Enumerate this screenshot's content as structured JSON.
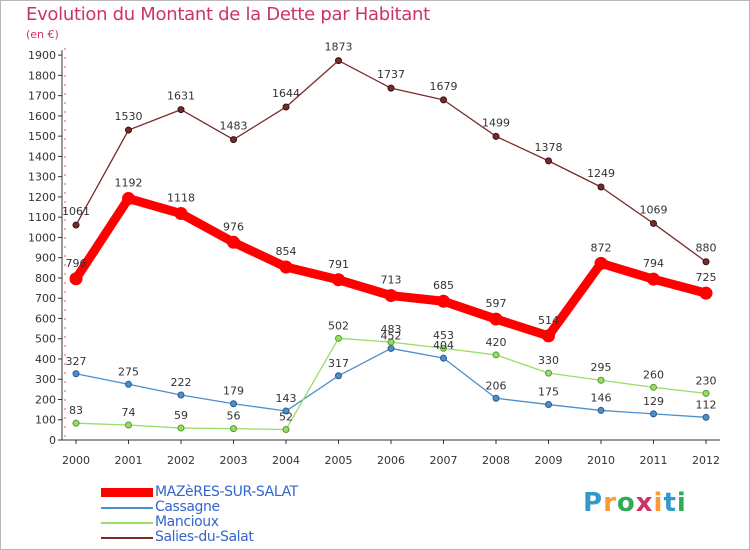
{
  "header": {
    "title": "Evolution du Montant de la Dette par Habitant",
    "subtitle": "(en €)"
  },
  "brand": {
    "text": "Proxiti",
    "colors": [
      "#3399cc",
      "#ff9933",
      "#33aa55",
      "#cc3366",
      "#ff9933",
      "#3399cc",
      "#33aa55"
    ]
  },
  "chart_data": {
    "type": "line",
    "title": "Evolution du Montant de la Dette par Habitant",
    "ylabel": "(en €)",
    "xlabel": "",
    "x": [
      2000,
      2001,
      2002,
      2003,
      2004,
      2005,
      2006,
      2007,
      2008,
      2009,
      2010,
      2011,
      2012
    ],
    "ylim": [
      0,
      1950
    ],
    "yticks": [
      0,
      100,
      200,
      300,
      400,
      500,
      600,
      700,
      800,
      900,
      1000,
      1100,
      1200,
      1300,
      1400,
      1500,
      1600,
      1700,
      1800,
      1900
    ],
    "grid": false,
    "legend_position": "bottom-left",
    "series": [
      {
        "name": "MAZèRES-SUR-SALAT",
        "color": "#ff0000",
        "values": [
          796,
          1192,
          1118,
          976,
          854,
          791,
          713,
          685,
          597,
          514,
          872,
          794,
          725
        ]
      },
      {
        "name": "Cassagne",
        "color": "#4d8fcc",
        "values": [
          327,
          275,
          222,
          179,
          143,
          317,
          452,
          404,
          206,
          175,
          146,
          129,
          112
        ]
      },
      {
        "name": "Mancioux",
        "color": "#99dd66",
        "values": [
          83,
          74,
          59,
          56,
          52,
          502,
          483,
          453,
          420,
          330,
          295,
          260,
          230
        ]
      },
      {
        "name": "Salies-du-Salat",
        "color": "#7a2a2a",
        "values": [
          1061,
          1530,
          1631,
          1483,
          1644,
          1873,
          1737,
          1679,
          1499,
          1378,
          1249,
          1069,
          880
        ]
      }
    ]
  }
}
